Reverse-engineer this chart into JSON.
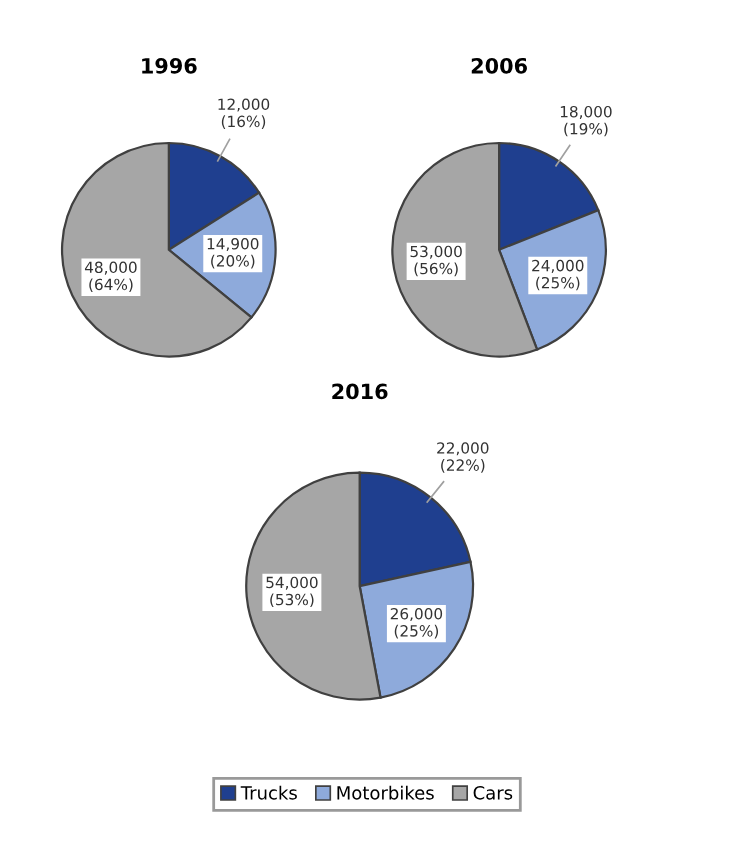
{
  "chart_data": [
    {
      "type": "pie",
      "title": "1996",
      "categories": [
        "Trucks",
        "Motorbikes",
        "Cars"
      ],
      "values": [
        12000,
        14900,
        48000
      ],
      "colors": [
        "#1f3f8f",
        "#8eaadb",
        "#a6a6a6"
      ],
      "value_labels": [
        "12,000\n(16%)",
        "14,900\n(20%)",
        "48,000\n(64%)"
      ],
      "legend": "bottom"
    },
    {
      "type": "pie",
      "title": "2006",
      "categories": [
        null,
        null,
        null
      ],
      "values": [
        18000,
        24000,
        53000
      ],
      "colors": [
        "#1f3f8f",
        "#8eaadb",
        "#a6a6a6"
      ],
      "value_labels": [
        "18,000\n(19%)",
        "24,000\n(25%)",
        "53,000\n(56%)"
      ]
    },
    {
      "type": "pie",
      "title": "2016",
      "categories": [
        null,
        null,
        null
      ],
      "values": [
        22000,
        26000,
        54000
      ],
      "colors": [
        "#1f3f8f",
        "#8eaadb",
        "#a6a6a6"
      ],
      "value_labels": [
        "22,000\n(22%)",
        "26,000\n(25%)",
        "54,000\n(53%)"
      ]
    }
  ]
}
